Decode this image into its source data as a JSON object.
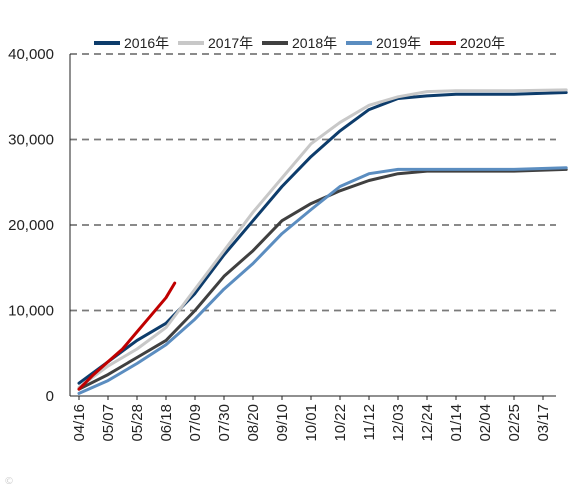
{
  "chart_data": {
    "type": "line",
    "title": "",
    "xlabel": "",
    "ylabel": "",
    "x_tick_labels": [
      "04/16",
      "05/07",
      "05/28",
      "06/18",
      "07/09",
      "07/30",
      "08/20",
      "09/10",
      "10/01",
      "10/22",
      "11/12",
      "12/03",
      "12/24",
      "01/14",
      "02/04",
      "02/25",
      "03/17"
    ],
    "y_tick_labels": [
      "0",
      "10,000",
      "20,000",
      "30,000",
      "40,000"
    ],
    "ylim": [
      0,
      40000
    ],
    "grid": "horizontal dashed",
    "legend_position": "top",
    "series": [
      {
        "name": "2016年",
        "color": "#0d3c6b",
        "x": [
          0,
          1,
          2,
          3,
          4,
          5,
          6,
          7,
          8,
          9,
          10,
          11,
          12,
          13,
          14,
          15,
          16.8
        ],
        "y": [
          1500,
          4000,
          6500,
          8500,
          12000,
          16500,
          20500,
          24500,
          28000,
          31000,
          33500,
          34800,
          35100,
          35300,
          35300,
          35300,
          35500
        ]
      },
      {
        "name": "2017年",
        "color": "#c8c8c8",
        "x": [
          0,
          1,
          2,
          3,
          4,
          5,
          6,
          7,
          8,
          9,
          10,
          11,
          12,
          13,
          14,
          15,
          16.8
        ],
        "y": [
          1000,
          3500,
          5500,
          8000,
          12500,
          17000,
          21500,
          25500,
          29500,
          32000,
          34000,
          35000,
          35600,
          35700,
          35700,
          35700,
          35800
        ]
      },
      {
        "name": "2018年",
        "color": "#404040",
        "x": [
          0,
          1,
          2,
          3,
          4,
          5,
          6,
          7,
          8,
          9,
          10,
          11,
          12,
          13,
          14,
          15,
          16.8
        ],
        "y": [
          800,
          2500,
          4500,
          6500,
          10000,
          14000,
          17000,
          20500,
          22500,
          24000,
          25200,
          26000,
          26300,
          26300,
          26300,
          26300,
          26500
        ]
      },
      {
        "name": "2019年",
        "color": "#5b8dc0",
        "x": [
          0,
          1,
          2,
          3,
          4,
          5,
          6,
          7,
          8,
          9,
          10,
          11,
          12,
          13,
          14,
          15,
          16.8
        ],
        "y": [
          300,
          1800,
          3800,
          6000,
          9000,
          12500,
          15500,
          19000,
          21800,
          24500,
          26000,
          26500,
          26500,
          26500,
          26500,
          26500,
          26700
        ]
      },
      {
        "name": "2020年",
        "color": "#c00000",
        "x": [
          0,
          0.5,
          1,
          1.5,
          2,
          2.5,
          3,
          3.3
        ],
        "y": [
          800,
          2500,
          4000,
          5500,
          7500,
          9500,
          11500,
          13200
        ]
      }
    ]
  }
}
